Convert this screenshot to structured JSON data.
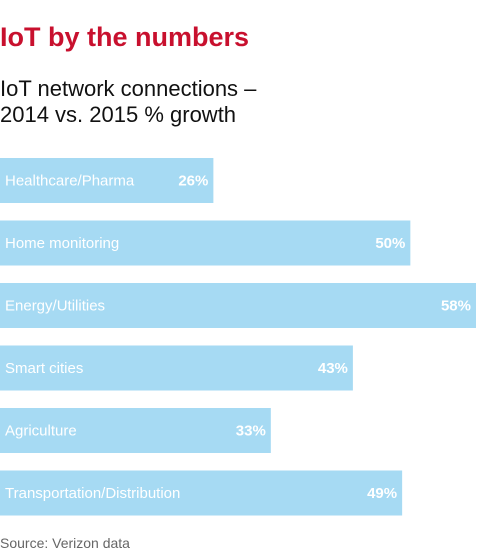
{
  "headline": "IoT by the numbers",
  "source": "Source: Verizon data",
  "chart_data": {
    "type": "bar",
    "orientation": "horizontal",
    "title": "IoT network connections –\n2014 vs. 2015 % growth",
    "title_lines": [
      "IoT network connections –",
      "2014 vs. 2015 % growth"
    ],
    "categories": [
      "Healthcare/Pharma",
      "Home monitoring",
      "Energy/Utilities",
      "Smart cities",
      "Agriculture",
      "Transportation/Distribution"
    ],
    "values": [
      26,
      50,
      58,
      43,
      33,
      49
    ],
    "value_labels": [
      "26%",
      "50%",
      "58%",
      "43%",
      "33%",
      "49%"
    ],
    "xlim": [
      0,
      58
    ],
    "grid": false,
    "legend": "none",
    "colors": {
      "bar": "#a6daf3",
      "bar_text": "#ffffff",
      "headline": "#c8102e"
    }
  }
}
